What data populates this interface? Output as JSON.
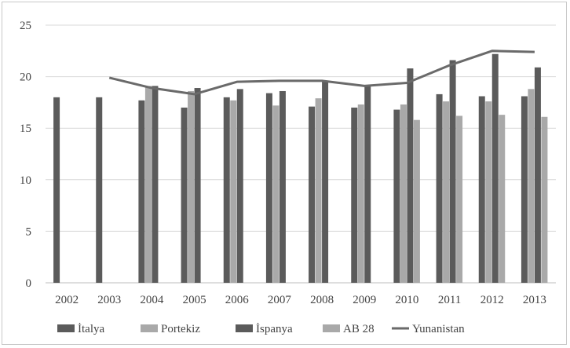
{
  "chart_data": {
    "type": "bar",
    "title": "",
    "xlabel": "",
    "ylabel": "",
    "categories": [
      "2002",
      "2003",
      "2004",
      "2005",
      "2006",
      "2007",
      "2008",
      "2009",
      "2010",
      "2011",
      "2012",
      "2013"
    ],
    "ylim": [
      0,
      25
    ],
    "yticks": [
      "0",
      "5",
      "10",
      "15",
      "20",
      "25"
    ],
    "grid": true,
    "legend_position": "bottom",
    "series": [
      {
        "name": "İtalya",
        "kind": "bar",
        "color": "#5b5b5b",
        "values": [
          18.0,
          18.0,
          17.7,
          17.0,
          18.0,
          18.4,
          17.1,
          17.0,
          16.8,
          18.3,
          18.1,
          18.1
        ]
      },
      {
        "name": "Portekiz",
        "kind": "bar",
        "color": "#a9a9a9",
        "values": [
          null,
          null,
          19.1,
          18.6,
          17.7,
          17.2,
          17.9,
          17.3,
          17.3,
          17.6,
          17.6,
          18.8
        ]
      },
      {
        "name": "İspanya",
        "kind": "bar",
        "color": "#5b5b5b",
        "values": [
          null,
          null,
          19.1,
          18.9,
          18.8,
          18.6,
          19.6,
          19.1,
          20.8,
          21.6,
          22.2,
          20.9
        ]
      },
      {
        "name": "AB 28",
        "kind": "bar",
        "color": "#a9a9a9",
        "values": [
          null,
          null,
          null,
          null,
          null,
          null,
          null,
          null,
          15.8,
          16.2,
          16.3,
          16.1
        ]
      },
      {
        "name": "Yunanistan",
        "kind": "line",
        "color": "#6a6a6a",
        "values": [
          null,
          19.9,
          18.9,
          18.3,
          19.5,
          19.6,
          19.6,
          19.1,
          19.4,
          21.1,
          22.5,
          22.4
        ]
      }
    ]
  }
}
